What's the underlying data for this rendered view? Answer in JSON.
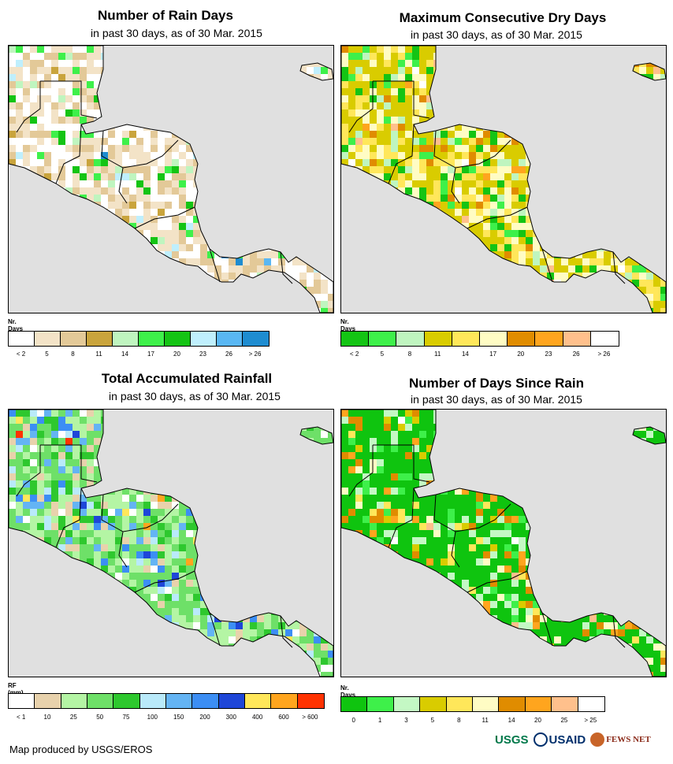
{
  "panels": [
    {
      "id": "rain-days",
      "title": "Number of Rain Days",
      "subtitle": "in past 30 days, as of 30 Mar. 2015",
      "legend_title": "Nr. Days",
      "colors": [
        "#ffffff",
        "#f3e3c7",
        "#e3c998",
        "#c9a43c",
        "#bff5bf",
        "#3ef04a",
        "#14c414",
        "#bfeffd",
        "#59b7f3",
        "#1e8cd0"
      ],
      "labels": [
        "< 2",
        "5",
        "8",
        "11",
        "14",
        "17",
        "20",
        "23",
        "26",
        "> 26"
      ]
    },
    {
      "id": "max-dry-days",
      "title": "Maximum Consecutive Dry Days",
      "subtitle": "in past 30 days, as of 30 Mar. 2015",
      "legend_title": "Nr. Days",
      "colors": [
        "#14c414",
        "#3ef04a",
        "#bff5bf",
        "#d9cc00",
        "#ffe75a",
        "#fffcc4",
        "#e08c00",
        "#ffa51e",
        "#ffc08c",
        "#ffffff"
      ],
      "labels": [
        "< 2",
        "5",
        "8",
        "11",
        "14",
        "17",
        "20",
        "23",
        "26",
        "> 26"
      ]
    },
    {
      "id": "total-rainfall",
      "title": "Total Accumulated Rainfall",
      "subtitle": "in past 30 days, as of 30 Mar. 2015",
      "legend_title": "RF (mm)",
      "colors": [
        "#ffffff",
        "#e8d2ac",
        "#b4f5a4",
        "#6ee068",
        "#2ec82e",
        "#b9eafa",
        "#64b4f4",
        "#3c8ef4",
        "#1e46d8",
        "#ffe75a",
        "#ffa51e",
        "#ff3200"
      ],
      "labels": [
        "< 1",
        "10",
        "25",
        "50",
        "75",
        "100",
        "150",
        "200",
        "300",
        "400",
        "600",
        "> 600"
      ]
    },
    {
      "id": "days-since-rain",
      "title": "Number of Days Since Rain",
      "subtitle": "in past 30 days, as of 30 Mar. 2015",
      "legend_title": "Nr. Days",
      "colors": [
        "#0fc40f",
        "#3ef04a",
        "#c4f8c4",
        "#d9cc00",
        "#ffe75a",
        "#fffcc4",
        "#e08c00",
        "#ffa51e",
        "#ffc08c",
        "#ffffff"
      ],
      "labels": [
        "0",
        "1",
        "3",
        "5",
        "8",
        "11",
        "14",
        "20",
        "25",
        "> 25"
      ]
    }
  ],
  "footer": "Map produced by USGS/EROS",
  "logos": [
    "USGS",
    "USAID",
    "FEWS NET"
  ]
}
